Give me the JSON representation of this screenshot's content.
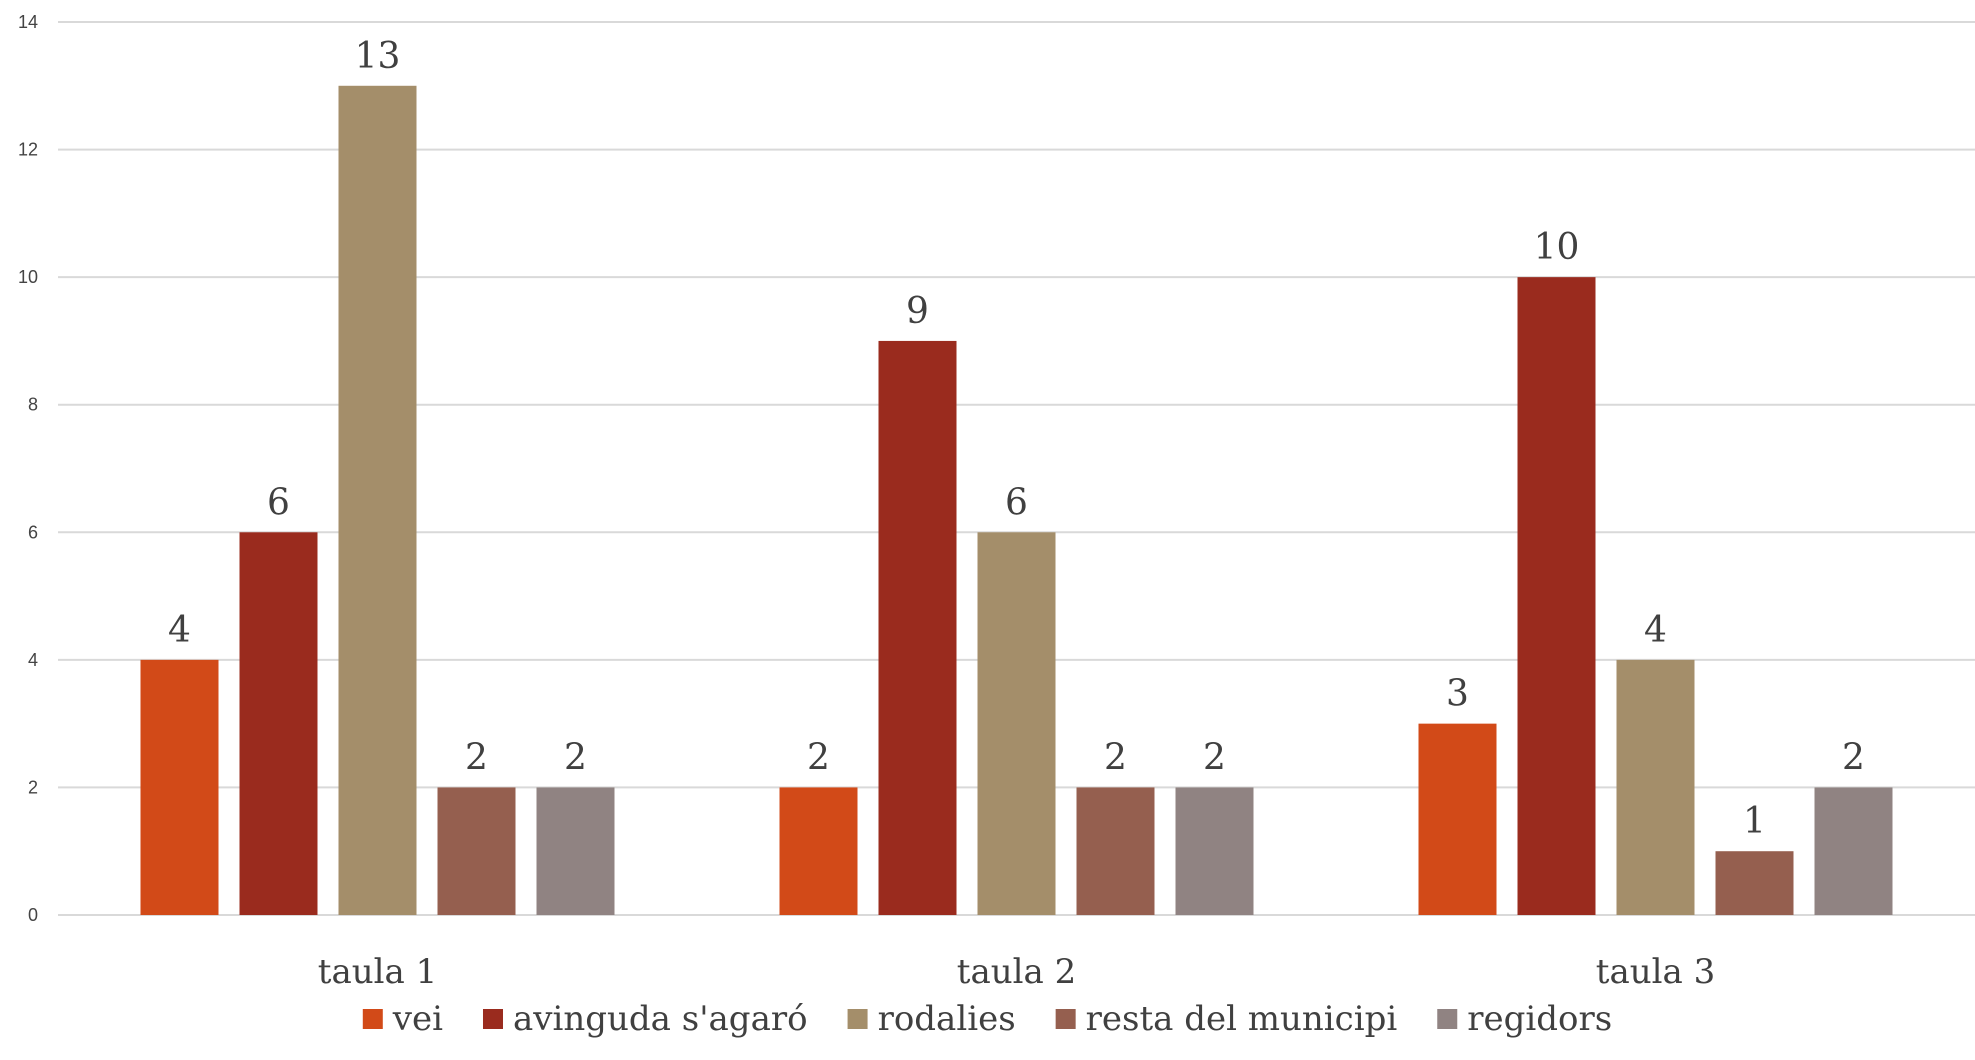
{
  "chart_data": {
    "type": "bar",
    "categories": [
      "taula 1",
      "taula 2",
      "taula 3"
    ],
    "series": [
      {
        "name": "vei",
        "color": "#d24a18",
        "values": [
          4,
          2,
          3
        ]
      },
      {
        "name": "avinguda s'agaró",
        "color": "#9a2b1e",
        "values": [
          6,
          9,
          10
        ]
      },
      {
        "name": "rodalies",
        "color": "#a48e6a",
        "values": [
          13,
          6,
          4
        ]
      },
      {
        "name": "resta del municipi",
        "color": "#955f4f",
        "values": [
          2,
          2,
          1
        ]
      },
      {
        "name": "regidors",
        "color": "#908382",
        "values": [
          2,
          2,
          2
        ]
      }
    ],
    "yticks": [
      "0",
      "2",
      "4",
      "6",
      "8",
      "10",
      "12",
      "14"
    ],
    "ylim": [
      0,
      14
    ],
    "grid": true,
    "legend": "bottom",
    "data_labels": true
  }
}
